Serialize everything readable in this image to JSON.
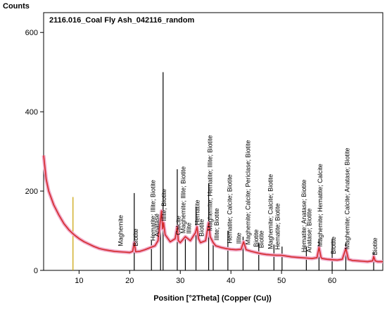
{
  "chart_data": {
    "type": "line",
    "title": "2116.016_Coal Fly Ash_042116_random",
    "xlabel": "Position [°2Theta] (Copper (Cu))",
    "ylabel": "Counts",
    "xlim": [
      3,
      70
    ],
    "ylim": [
      0,
      650
    ],
    "x_ticks": [
      10,
      20,
      30,
      40,
      50,
      60
    ],
    "y_ticks": [
      0,
      200,
      400,
      600
    ],
    "grid": false,
    "colors": {
      "pattern": "#d42a2a",
      "pattern_shadow": "#f0a8c8",
      "peak_sticks": "#000000",
      "reference_sticks": "#c8a000"
    },
    "series": [
      {
        "values": [
          [
            3,
            290
          ],
          [
            3.5,
            230
          ],
          [
            4,
            200
          ],
          [
            5,
            165
          ],
          [
            6,
            140
          ],
          [
            7,
            118
          ],
          [
            8,
            102
          ],
          [
            9,
            90
          ],
          [
            10,
            80
          ],
          [
            11,
            72
          ],
          [
            12,
            66
          ],
          [
            13,
            60
          ],
          [
            14,
            55
          ],
          [
            15,
            52
          ],
          [
            16,
            50
          ],
          [
            17,
            48
          ],
          [
            18,
            47
          ],
          [
            19,
            46
          ],
          [
            20,
            45
          ],
          [
            20.6,
            48
          ],
          [
            20.9,
            70
          ],
          [
            21.2,
            47
          ],
          [
            22,
            48
          ],
          [
            23,
            52
          ],
          [
            24,
            57
          ],
          [
            25,
            62
          ],
          [
            25.6,
            75
          ],
          [
            26.1,
            130
          ],
          [
            26.3,
            150
          ],
          [
            26.5,
            105
          ],
          [
            26.7,
            120
          ],
          [
            27,
            90
          ],
          [
            28,
            72
          ],
          [
            29,
            80
          ],
          [
            29.4,
            110
          ],
          [
            29.6,
            75
          ],
          [
            30,
            70
          ],
          [
            31,
            85
          ],
          [
            32,
            75
          ],
          [
            33,
            95
          ],
          [
            33.3,
            110
          ],
          [
            33.6,
            80
          ],
          [
            34,
            70
          ],
          [
            35,
            75
          ],
          [
            35.6,
            120
          ],
          [
            35.9,
            85
          ],
          [
            36.5,
            70
          ],
          [
            37,
            62
          ],
          [
            38,
            58
          ],
          [
            39,
            55
          ],
          [
            40,
            53
          ],
          [
            41,
            52
          ],
          [
            42,
            53
          ],
          [
            42.5,
            72
          ],
          [
            43,
            52
          ],
          [
            44,
            48
          ],
          [
            45,
            45
          ],
          [
            46,
            42
          ],
          [
            47,
            40
          ],
          [
            48,
            39
          ],
          [
            49,
            38
          ],
          [
            50,
            38
          ],
          [
            51,
            36
          ],
          [
            52,
            34
          ],
          [
            53,
            33
          ],
          [
            54,
            32
          ],
          [
            55,
            31
          ],
          [
            56,
            30
          ],
          [
            57,
            32
          ],
          [
            57.4,
            58
          ],
          [
            57.8,
            33
          ],
          [
            58,
            30
          ],
          [
            59,
            28
          ],
          [
            60,
            27
          ],
          [
            61,
            26
          ],
          [
            62,
            28
          ],
          [
            62.7,
            55
          ],
          [
            63.2,
            28
          ],
          [
            64,
            25
          ],
          [
            65,
            24
          ],
          [
            66,
            23
          ],
          [
            67,
            22
          ],
          [
            68,
            24
          ],
          [
            68.2,
            35
          ],
          [
            68.5,
            24
          ],
          [
            69,
            22
          ],
          [
            70,
            22
          ]
        ]
      }
    ],
    "peak_sticks": [
      {
        "x": 26.6,
        "y": 500
      },
      {
        "x": 29.4,
        "y": 255
      },
      {
        "x": 35.6,
        "y": 220
      },
      {
        "x": 20.9,
        "y": 195
      },
      {
        "x": 33.1,
        "y": 160
      },
      {
        "x": 26.1,
        "y": 130
      },
      {
        "x": 39.4,
        "y": 100
      },
      {
        "x": 42.4,
        "y": 85
      },
      {
        "x": 31.0,
        "y": 85
      },
      {
        "x": 57.4,
        "y": 80
      },
      {
        "x": 60.0,
        "y": 80
      },
      {
        "x": 62.7,
        "y": 70
      },
      {
        "x": 45.5,
        "y": 70
      },
      {
        "x": 48.5,
        "y": 65
      },
      {
        "x": 50.1,
        "y": 60
      },
      {
        "x": 54.9,
        "y": 60
      },
      {
        "x": 36.5,
        "y": 75
      },
      {
        "x": 24.3,
        "y": 75
      },
      {
        "x": 68.2,
        "y": 45
      },
      {
        "x": 8.8,
        "y": 185
      }
    ],
    "annotations": [
      {
        "text": "Illite; Biotite",
        "x": 26.8
      },
      {
        "text": "Biotite",
        "x": 21.2
      },
      {
        "text": "Maghemite",
        "x": 18.2
      },
      {
        "text": "Hematite; Illite; Biotite",
        "x": 24.6
      },
      {
        "text": "Anatase",
        "x": 25.4
      },
      {
        "text": "Calcite",
        "x": 29.6
      },
      {
        "text": "Maghemite; Illite; Biotite",
        "x": 30.6
      },
      {
        "text": "Illite",
        "x": 31.7
      },
      {
        "text": "Hematite",
        "x": 33.4
      },
      {
        "text": "Biotite",
        "x": 34.2
      },
      {
        "text": "Maghemite; Hematite; Illite; Biotite",
        "x": 35.9
      },
      {
        "text": "Illite; Biotite",
        "x": 37.2
      },
      {
        "text": "Hematite; Calcite; Biotite",
        "x": 39.8
      },
      {
        "text": "Illite",
        "x": 41.6
      },
      {
        "text": "Maghemite; Calcite; Periclase; Biotite",
        "x": 43.4
      },
      {
        "text": "Biotite",
        "x": 45.0
      },
      {
        "text": "Biotite",
        "x": 46.0
      },
      {
        "text": "Maghemite; Calcite; Biotite",
        "x": 47.8
      },
      {
        "text": "Hematite; Biotite",
        "x": 49.2
      },
      {
        "text": "Hematite; Anatase; Biotite",
        "x": 54.4
      },
      {
        "text": "Anatase; Biotite",
        "x": 55.5
      },
      {
        "text": "Maghemite; Hematite; Calcite",
        "x": 57.6
      },
      {
        "text": "Biotite",
        "x": 60.3
      },
      {
        "text": "Maghemite; Calcite; Anatase; Biotite",
        "x": 63.0
      },
      {
        "text": "Biotite",
        "x": 68.5
      }
    ]
  }
}
